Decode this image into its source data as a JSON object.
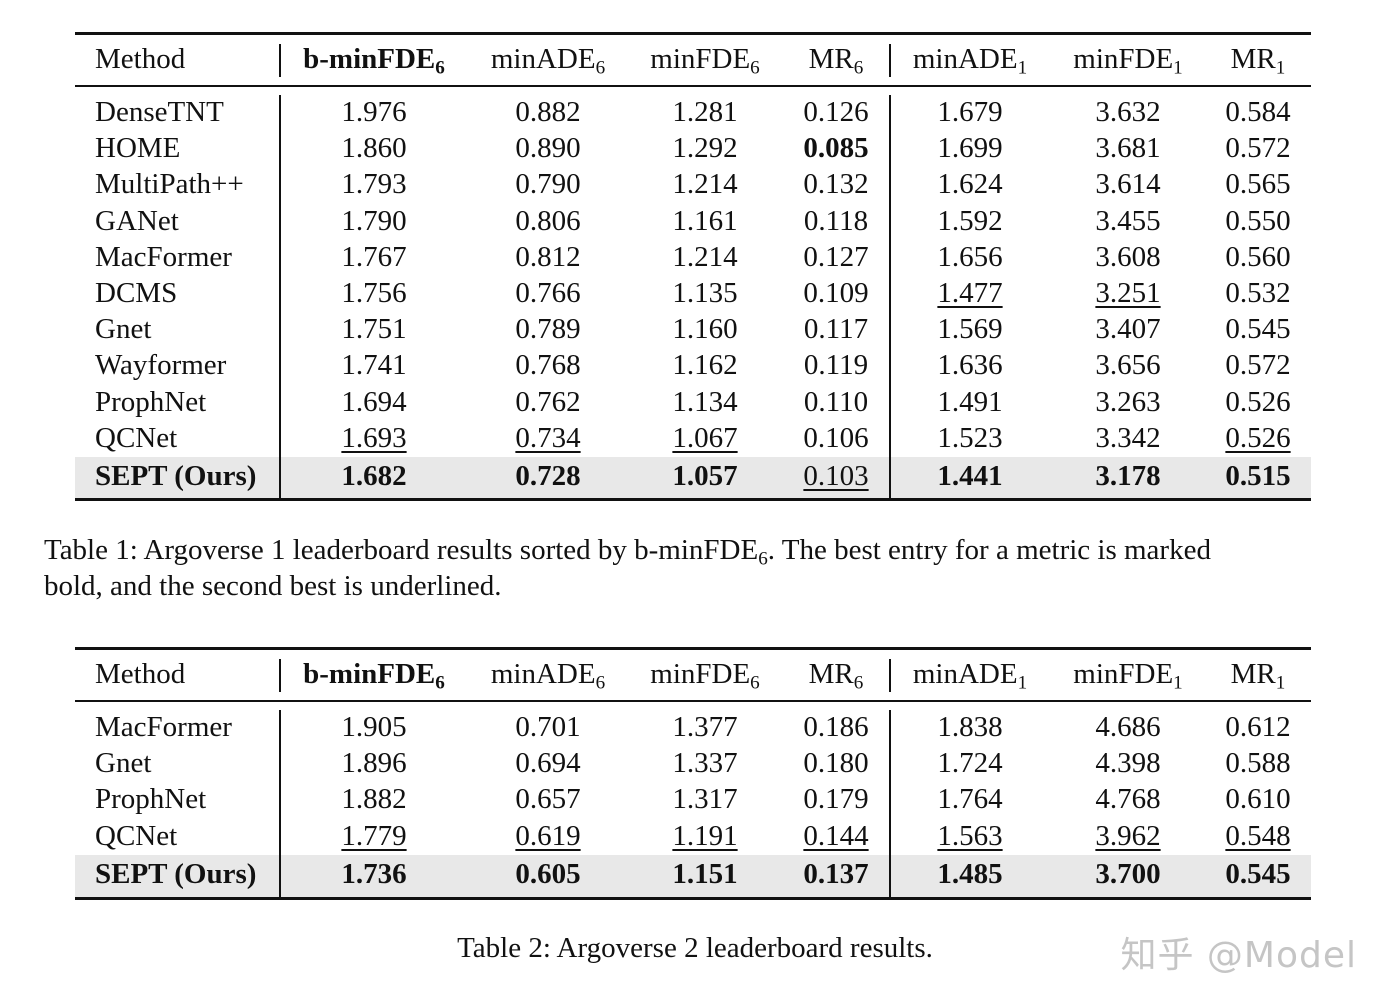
{
  "columns": [
    {
      "base": "Method",
      "sub": "",
      "bold": false
    },
    {
      "base": "b-minFDE",
      "sub": "6",
      "bold": true
    },
    {
      "base": "minADE",
      "sub": "6",
      "bold": false
    },
    {
      "base": "minFDE",
      "sub": "6",
      "bold": false
    },
    {
      "base": "MR",
      "sub": "6",
      "bold": false
    },
    {
      "base": "minADE",
      "sub": "1",
      "bold": false
    },
    {
      "base": "minFDE",
      "sub": "1",
      "bold": false
    },
    {
      "base": "MR",
      "sub": "1",
      "bold": false
    }
  ],
  "table1": {
    "rows": [
      {
        "method": "DenseTNT",
        "values": [
          "1.976",
          "0.882",
          "1.281",
          "0.126",
          "1.679",
          "3.632",
          "0.584"
        ],
        "bold": [],
        "underline": []
      },
      {
        "method": "HOME",
        "values": [
          "1.860",
          "0.890",
          "1.292",
          "0.085",
          "1.699",
          "3.681",
          "0.572"
        ],
        "bold": [
          3
        ],
        "underline": []
      },
      {
        "method": "MultiPath++",
        "values": [
          "1.793",
          "0.790",
          "1.214",
          "0.132",
          "1.624",
          "3.614",
          "0.565"
        ],
        "bold": [],
        "underline": []
      },
      {
        "method": "GANet",
        "values": [
          "1.790",
          "0.806",
          "1.161",
          "0.118",
          "1.592",
          "3.455",
          "0.550"
        ],
        "bold": [],
        "underline": []
      },
      {
        "method": "MacFormer",
        "values": [
          "1.767",
          "0.812",
          "1.214",
          "0.127",
          "1.656",
          "3.608",
          "0.560"
        ],
        "bold": [],
        "underline": []
      },
      {
        "method": "DCMS",
        "values": [
          "1.756",
          "0.766",
          "1.135",
          "0.109",
          "1.477",
          "3.251",
          "0.532"
        ],
        "bold": [],
        "underline": [
          4,
          5
        ]
      },
      {
        "method": "Gnet",
        "values": [
          "1.751",
          "0.789",
          "1.160",
          "0.117",
          "1.569",
          "3.407",
          "0.545"
        ],
        "bold": [],
        "underline": []
      },
      {
        "method": "Wayformer",
        "values": [
          "1.741",
          "0.768",
          "1.162",
          "0.119",
          "1.636",
          "3.656",
          "0.572"
        ],
        "bold": [],
        "underline": []
      },
      {
        "method": "ProphNet",
        "values": [
          "1.694",
          "0.762",
          "1.134",
          "0.110",
          "1.491",
          "3.263",
          "0.526"
        ],
        "bold": [],
        "underline": []
      },
      {
        "method": "QCNet",
        "values": [
          "1.693",
          "0.734",
          "1.067",
          "0.106",
          "1.523",
          "3.342",
          "0.526"
        ],
        "bold": [],
        "underline": [
          0,
          1,
          2,
          6
        ]
      },
      {
        "method": "SEPT (Ours)",
        "values": [
          "1.682",
          "0.728",
          "1.057",
          "0.103",
          "1.441",
          "3.178",
          "0.515"
        ],
        "bold": [
          0,
          1,
          2,
          4,
          5,
          6
        ],
        "underline": [
          3
        ],
        "method_bold": true,
        "highlight": true
      }
    ],
    "caption_prefix": "Table 1: Argoverse 1 leaderboard results sorted by b-minFDE",
    "caption_sub": "6",
    "caption_line1_rest": ". The best entry for a metric is marked",
    "caption_line2": "bold, and the second best is underlined."
  },
  "table2": {
    "rows": [
      {
        "method": "MacFormer",
        "values": [
          "1.905",
          "0.701",
          "1.377",
          "0.186",
          "1.838",
          "4.686",
          "0.612"
        ],
        "bold": [],
        "underline": []
      },
      {
        "method": "Gnet",
        "values": [
          "1.896",
          "0.694",
          "1.337",
          "0.180",
          "1.724",
          "4.398",
          "0.588"
        ],
        "bold": [],
        "underline": []
      },
      {
        "method": "ProphNet",
        "values": [
          "1.882",
          "0.657",
          "1.317",
          "0.179",
          "1.764",
          "4.768",
          "0.610"
        ],
        "bold": [],
        "underline": []
      },
      {
        "method": "QCNet",
        "values": [
          "1.779",
          "0.619",
          "1.191",
          "0.144",
          "1.563",
          "3.962",
          "0.548"
        ],
        "bold": [],
        "underline": [
          0,
          1,
          2,
          3,
          4,
          5,
          6
        ]
      },
      {
        "method": "SEPT (Ours)",
        "values": [
          "1.736",
          "0.605",
          "1.151",
          "0.137",
          "1.485",
          "3.700",
          "0.545"
        ],
        "bold": [
          0,
          1,
          2,
          3,
          4,
          5,
          6
        ],
        "underline": [],
        "method_bold": true,
        "highlight": true
      }
    ],
    "caption": "Table 2: Argoverse 2 leaderboard results."
  },
  "watermark": "知乎 @Model"
}
